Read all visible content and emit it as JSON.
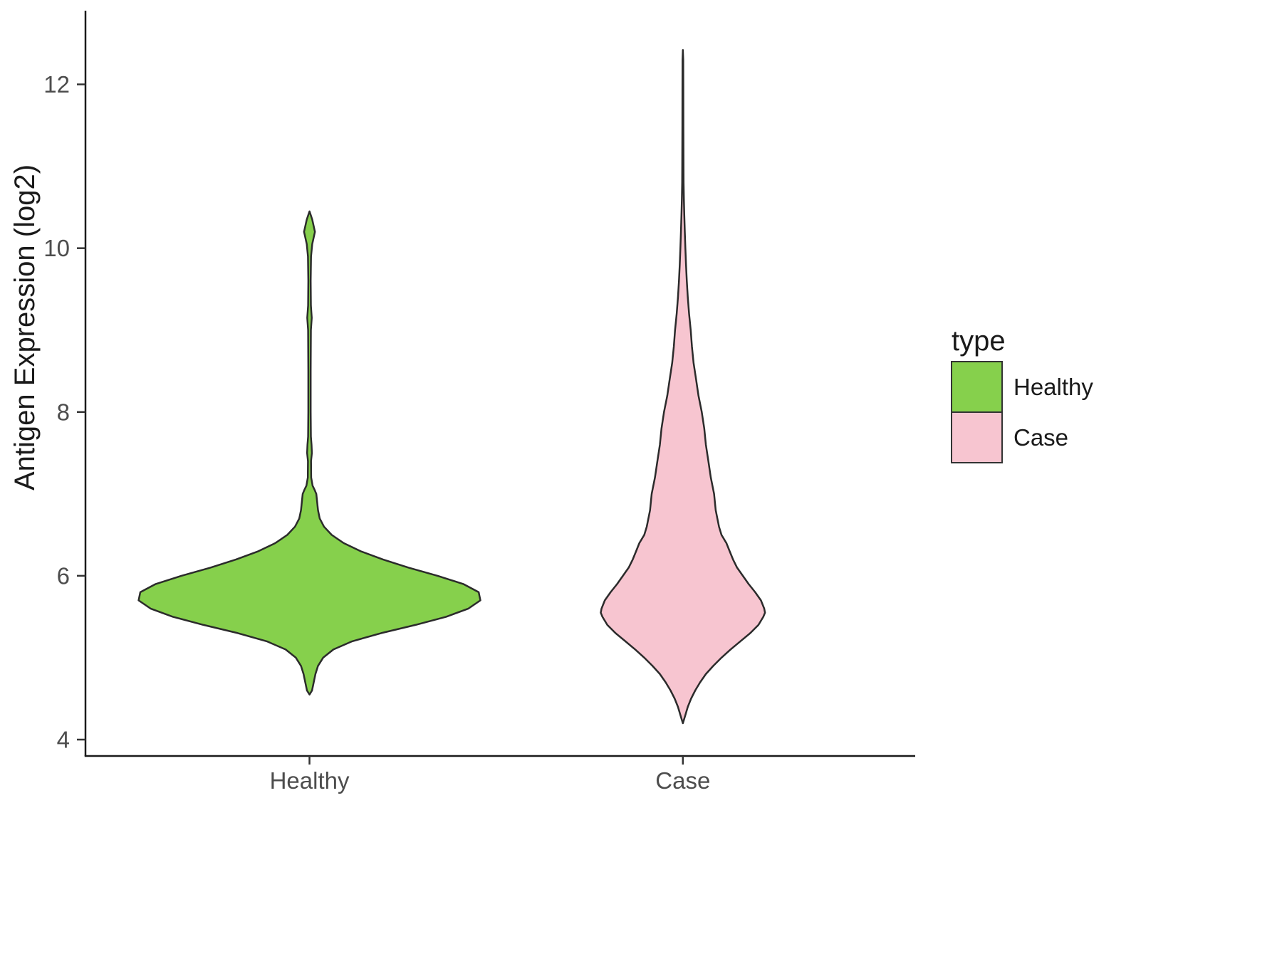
{
  "chart_data": {
    "type": "violin",
    "title": "",
    "xlabel": "",
    "ylabel": "Antigen Expression (log2)",
    "ylim": [
      3.8,
      12.9
    ],
    "yticks": [
      4,
      6,
      8,
      10,
      12
    ],
    "categories": [
      "Healthy",
      "Case"
    ],
    "grid": false,
    "legend": {
      "title": "type",
      "position": "right",
      "entries": [
        {
          "label": "Healthy",
          "color": "#86d04c"
        },
        {
          "label": "Case",
          "color": "#f7c5d0"
        }
      ]
    },
    "stroke_color": "#2b2b2b",
    "series": [
      {
        "name": "Healthy",
        "fill": "#86d04c",
        "center_frac": 0.27,
        "halfwidth_frac": 0.206,
        "profile": [
          [
            4.55,
            0.0
          ],
          [
            4.6,
            0.015
          ],
          [
            4.7,
            0.025
          ],
          [
            4.8,
            0.035
          ],
          [
            4.9,
            0.05
          ],
          [
            5.0,
            0.08
          ],
          [
            5.1,
            0.14
          ],
          [
            5.2,
            0.25
          ],
          [
            5.3,
            0.42
          ],
          [
            5.4,
            0.62
          ],
          [
            5.5,
            0.8
          ],
          [
            5.6,
            0.93
          ],
          [
            5.7,
            1.0
          ],
          [
            5.8,
            0.99
          ],
          [
            5.9,
            0.9
          ],
          [
            6.0,
            0.75
          ],
          [
            6.1,
            0.58
          ],
          [
            6.2,
            0.43
          ],
          [
            6.3,
            0.3
          ],
          [
            6.4,
            0.2
          ],
          [
            6.5,
            0.13
          ],
          [
            6.6,
            0.085
          ],
          [
            6.7,
            0.06
          ],
          [
            6.8,
            0.05
          ],
          [
            6.9,
            0.045
          ],
          [
            7.0,
            0.04
          ],
          [
            7.05,
            0.03
          ],
          [
            7.1,
            0.018
          ],
          [
            7.2,
            0.01
          ],
          [
            7.4,
            0.009
          ],
          [
            7.5,
            0.014
          ],
          [
            7.6,
            0.012
          ],
          [
            7.7,
            0.008
          ],
          [
            8.0,
            0.007
          ],
          [
            8.5,
            0.007
          ],
          [
            9.0,
            0.008
          ],
          [
            9.15,
            0.013
          ],
          [
            9.3,
            0.008
          ],
          [
            9.6,
            0.007
          ],
          [
            9.9,
            0.009
          ],
          [
            10.05,
            0.016
          ],
          [
            10.2,
            0.032
          ],
          [
            10.35,
            0.016
          ],
          [
            10.45,
            0.0
          ]
        ]
      },
      {
        "name": "Case",
        "fill": "#f7c5d0",
        "center_frac": 0.72,
        "halfwidth_frac": 0.099,
        "profile": [
          [
            4.2,
            0.0
          ],
          [
            4.3,
            0.03
          ],
          [
            4.4,
            0.06
          ],
          [
            4.5,
            0.1
          ],
          [
            4.6,
            0.15
          ],
          [
            4.7,
            0.21
          ],
          [
            4.8,
            0.28
          ],
          [
            4.9,
            0.37
          ],
          [
            5.0,
            0.47
          ],
          [
            5.1,
            0.58
          ],
          [
            5.2,
            0.7
          ],
          [
            5.3,
            0.82
          ],
          [
            5.4,
            0.92
          ],
          [
            5.5,
            0.98
          ],
          [
            5.55,
            1.0
          ],
          [
            5.6,
            0.99
          ],
          [
            5.7,
            0.95
          ],
          [
            5.8,
            0.88
          ],
          [
            5.9,
            0.8
          ],
          [
            6.0,
            0.73
          ],
          [
            6.1,
            0.66
          ],
          [
            6.2,
            0.61
          ],
          [
            6.3,
            0.57
          ],
          [
            6.4,
            0.53
          ],
          [
            6.5,
            0.47
          ],
          [
            6.6,
            0.44
          ],
          [
            6.8,
            0.4
          ],
          [
            7.0,
            0.38
          ],
          [
            7.2,
            0.34
          ],
          [
            7.4,
            0.31
          ],
          [
            7.6,
            0.28
          ],
          [
            7.8,
            0.26
          ],
          [
            8.0,
            0.23
          ],
          [
            8.2,
            0.19
          ],
          [
            8.4,
            0.16
          ],
          [
            8.6,
            0.13
          ],
          [
            8.8,
            0.11
          ],
          [
            9.0,
            0.095
          ],
          [
            9.2,
            0.075
          ],
          [
            9.4,
            0.06
          ],
          [
            9.6,
            0.048
          ],
          [
            9.8,
            0.038
          ],
          [
            10.0,
            0.03
          ],
          [
            10.2,
            0.023
          ],
          [
            10.4,
            0.017
          ],
          [
            10.6,
            0.012
          ],
          [
            10.8,
            0.009
          ],
          [
            11.0,
            0.008
          ],
          [
            11.5,
            0.006
          ],
          [
            12.0,
            0.005
          ],
          [
            12.3,
            0.004
          ],
          [
            12.42,
            0.0
          ]
        ]
      }
    ]
  }
}
